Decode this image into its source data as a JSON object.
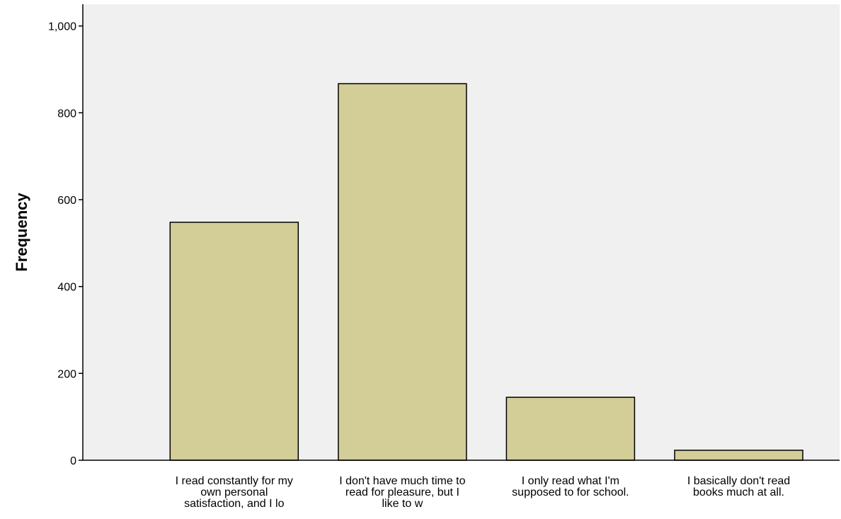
{
  "chart_data": {
    "type": "bar",
    "title": "",
    "xlabel": "",
    "ylabel": "Frequency",
    "categories": [
      [
        "I read constantly for my",
        "own personal",
        "satisfaction, and I lo"
      ],
      [
        "I don't have much time to",
        "read for pleasure, but I",
        "like to w"
      ],
      [
        "I only read what I'm",
        "supposed to for school."
      ],
      [
        "I basically don't read",
        "books much at all."
      ]
    ],
    "values": [
      548,
      867,
      145,
      23
    ],
    "ylim": [
      0,
      1050
    ],
    "yticks": [
      0,
      200,
      400,
      600,
      800,
      1000
    ],
    "ytick_labels": [
      "0",
      "200",
      "400",
      "600",
      "800",
      "1,000"
    ],
    "grid": false,
    "legend": "none",
    "colors": {
      "bar_fill": "#D3CE98",
      "bar_stroke": "#000000",
      "plot_background": "#F0F0F0",
      "axis": "#000000"
    }
  }
}
